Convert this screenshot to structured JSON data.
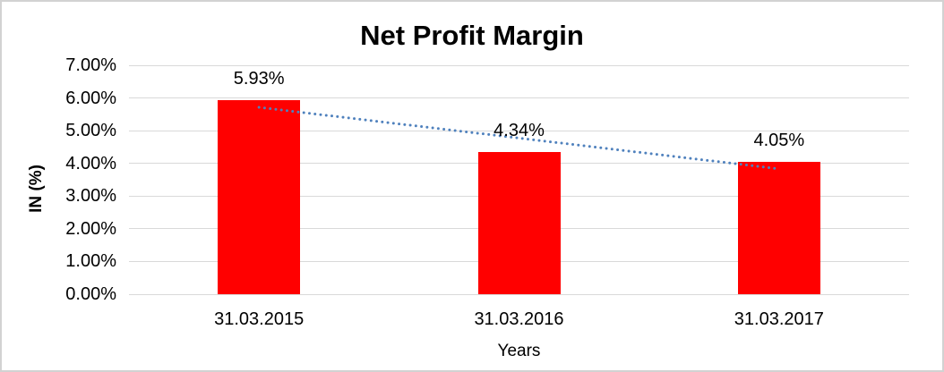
{
  "window": {
    "background": "#ffffff",
    "border_color": "#d2d2d2"
  },
  "chart_data": {
    "type": "bar",
    "title": "Net Profit Margin",
    "categories": [
      "31.03.2015",
      "31.03.2016",
      "31.03.2017"
    ],
    "values": [
      5.93,
      4.34,
      4.05
    ],
    "value_labels": [
      "5.93%",
      "4.34%",
      "4.05%"
    ],
    "xlabel": "Years",
    "ylabel": "IN (%)",
    "ylim": [
      0,
      7
    ],
    "y_tick_step": 1,
    "y_tick_labels": [
      "0.00%",
      "1.00%",
      "2.00%",
      "3.00%",
      "4.00%",
      "5.00%",
      "6.00%",
      "7.00%"
    ],
    "grid": true,
    "legend": "none",
    "bar_color": "#ff0000",
    "gridline_color": "#d9d9d9",
    "axis_line_color": "#d9d9d9",
    "text_color": "#000000",
    "trendline": {
      "type": "linear",
      "style": "dotted",
      "color": "#4f81bd",
      "fit_endpoints": [
        5.71,
        3.83
      ]
    }
  }
}
